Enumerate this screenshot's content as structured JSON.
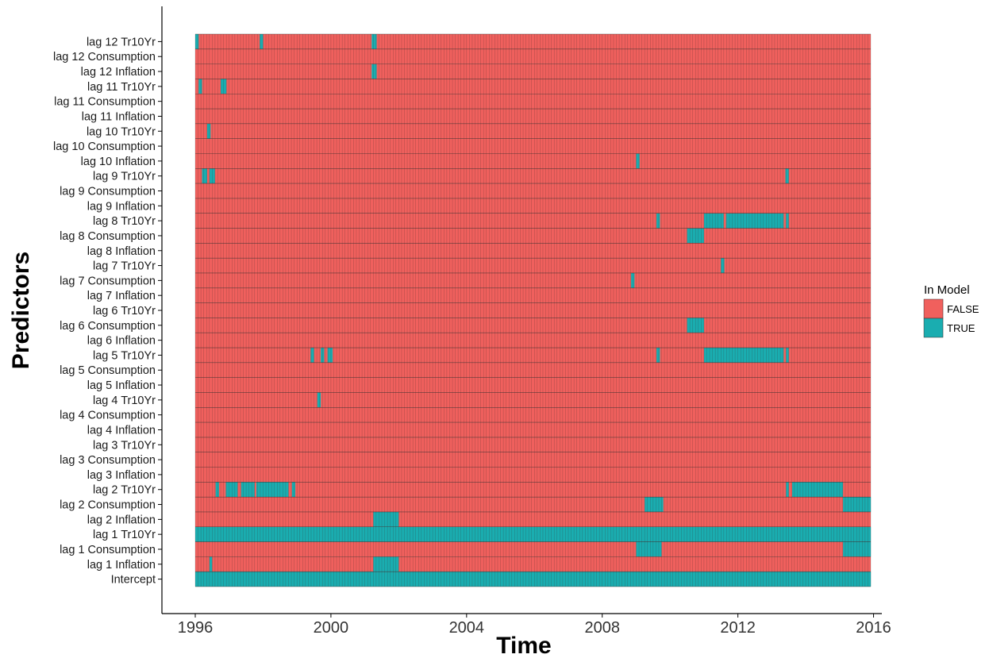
{
  "colors": {
    "false": "#F0605D",
    "true": "#1AADB0",
    "cell_border": "#3a2a2a",
    "axis": "#000000"
  },
  "chart_data": {
    "type": "heatmap",
    "xlabel": "Time",
    "ylabel": "Predictors",
    "x_range": [
      1996.0,
      2015.9167
    ],
    "x_ticks": [
      "1996",
      "2000",
      "2004",
      "2008",
      "2012",
      "2016"
    ],
    "x_tick_values": [
      1996,
      2000,
      2004,
      2008,
      2012,
      2016
    ],
    "legend": {
      "title": "In Model",
      "placement": "right",
      "entries": [
        "FALSE",
        "TRUE"
      ]
    },
    "row_labels": [
      "lag 12 Tr10Yr",
      "lag 12 Consumption",
      "lag 12 Inflation",
      "lag 11 Tr10Yr",
      "lag 11 Consumption",
      "lag 11 Inflation",
      "lag 10 Tr10Yr",
      "lag 10 Consumption",
      "lag 10 Inflation",
      "lag 9 Tr10Yr",
      "lag 9 Consumption",
      "lag 9 Inflation",
      "lag 8 Tr10Yr",
      "lag 8 Consumption",
      "lag 8 Inflation",
      "lag 7 Tr10Yr",
      "lag 7 Consumption",
      "lag 7 Inflation",
      "lag 6 Tr10Yr",
      "lag 6 Consumption",
      "lag 6 Inflation",
      "lag 5 Tr10Yr",
      "lag 5 Consumption",
      "lag 5 Inflation",
      "lag 4 Tr10Yr",
      "lag 4 Consumption",
      "lag 4 Inflation",
      "lag 3 Tr10Yr",
      "lag 3 Consumption",
      "lag 3 Inflation",
      "lag 2 Tr10Yr",
      "lag 2 Consumption",
      "lag 2 Inflation",
      "lag 1 Tr10Yr",
      "lag 1 Consumption",
      "lag 1 Inflation",
      "Intercept"
    ],
    "cell_width_years": 0.0833,
    "true_spans": {
      "lag 12 Tr10Yr": [
        [
          1996.0,
          1996.1
        ],
        [
          1997.9,
          1998.0
        ],
        [
          2001.2,
          2001.35
        ]
      ],
      "lag 12 Inflation": [
        [
          2001.2,
          2001.35
        ]
      ],
      "lag 11 Tr10Yr": [
        [
          1996.1,
          1996.2
        ],
        [
          1996.75,
          1996.92
        ]
      ],
      "lag 10 Tr10Yr": [
        [
          1996.35,
          1996.45
        ]
      ],
      "lag 10 Inflation": [
        [
          2009.0,
          2009.1
        ]
      ],
      "lag 9 Tr10Yr": [
        [
          1996.2,
          1996.35
        ],
        [
          1996.42,
          1996.58
        ],
        [
          2013.4,
          2013.5
        ]
      ],
      "lag 8 Tr10Yr": [
        [
          2009.6,
          2009.7
        ],
        [
          2011.0,
          2011.58
        ],
        [
          2011.65,
          2013.35
        ],
        [
          2013.42,
          2013.5
        ]
      ],
      "lag 8 Consumption": [
        [
          2010.5,
          2011.0
        ]
      ],
      "lag 7 Tr10Yr": [
        [
          2011.5,
          2011.6
        ]
      ],
      "lag 7 Consumption": [
        [
          2008.85,
          2008.95
        ]
      ],
      "lag 6 Consumption": [
        [
          2010.5,
          2011.0
        ]
      ],
      "lag 5 Tr10Yr": [
        [
          1999.4,
          1999.5
        ],
        [
          1999.7,
          1999.8
        ],
        [
          1999.9,
          2000.05
        ],
        [
          2009.6,
          2009.7
        ],
        [
          2011.0,
          2013.35
        ],
        [
          2013.42,
          2013.5
        ]
      ],
      "lag 4 Tr10Yr": [
        [
          1999.6,
          1999.7
        ]
      ],
      "lag 2 Tr10Yr": [
        [
          1996.6,
          1996.7
        ],
        [
          1996.9,
          1997.25
        ],
        [
          1997.35,
          1997.75
        ],
        [
          1997.8,
          1998.75
        ],
        [
          1998.85,
          1998.95
        ],
        [
          2013.42,
          2013.5
        ],
        [
          2013.6,
          2015.1
        ]
      ],
      "lag 2 Consumption": [
        [
          2009.25,
          2009.8
        ],
        [
          2015.1,
          2015.92
        ]
      ],
      "lag 2 Inflation": [
        [
          2001.25,
          2002.0
        ]
      ],
      "lag 1 Tr10Yr": [
        [
          1996.0,
          2015.92
        ]
      ],
      "lag 1 Consumption": [
        [
          2009.0,
          2009.75
        ],
        [
          2015.1,
          2015.92
        ]
      ],
      "lag 1 Inflation": [
        [
          1996.42,
          1996.5
        ],
        [
          2001.25,
          2002.0
        ]
      ],
      "Intercept": [
        [
          1996.0,
          2015.92
        ]
      ]
    }
  }
}
